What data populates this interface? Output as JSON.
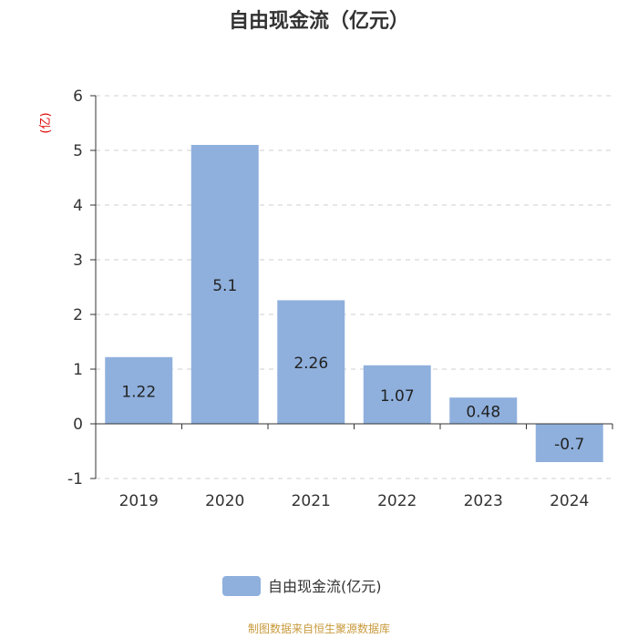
{
  "chart_data": {
    "type": "bar",
    "title": "自由现金流（亿元）",
    "ylabel": "(亿)",
    "categories": [
      "2019",
      "2020",
      "2021",
      "2022",
      "2023",
      "2024"
    ],
    "series": [
      {
        "name": "自由现金流(亿元)",
        "values": [
          1.22,
          5.1,
          2.26,
          1.07,
          0.48,
          -0.7
        ]
      }
    ],
    "data_labels": [
      "1.22",
      "5.1",
      "2.26",
      "1.07",
      "0.48",
      "-0.7"
    ],
    "ylim": [
      -1,
      6
    ],
    "yticks": [
      "6",
      "5",
      "4",
      "3",
      "2",
      "1",
      "0",
      "-1"
    ],
    "grid": true,
    "legend": "bottom-center",
    "bar_color": "#8fb0dd"
  },
  "source": "制图数据来自恒生聚源数据库"
}
